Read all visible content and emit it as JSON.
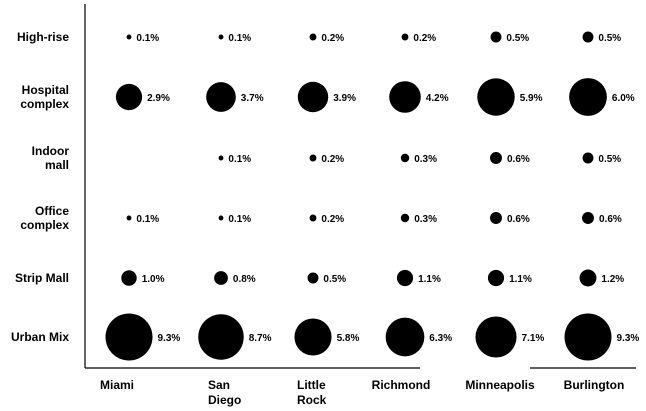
{
  "chart_data": {
    "type": "bubble-matrix",
    "rows": [
      "High-rise",
      "Hospital complex",
      "Indoor mall",
      "Office complex",
      "Strip Mall",
      "Urban Mix"
    ],
    "columns": [
      "Miami",
      "San Diego",
      "Little Rock",
      "Richmond",
      "Minneapolis",
      "Burlington"
    ],
    "values": [
      [
        0.1,
        0.1,
        0.2,
        0.2,
        0.5,
        0.5
      ],
      [
        2.9,
        3.7,
        3.9,
        4.2,
        5.9,
        6.0
      ],
      [
        null,
        0.1,
        0.2,
        0.3,
        0.6,
        0.5
      ],
      [
        0.1,
        0.1,
        0.2,
        0.3,
        0.6,
        0.6
      ],
      [
        1.0,
        0.8,
        0.5,
        1.1,
        1.1,
        1.2
      ],
      [
        9.3,
        8.7,
        5.8,
        6.3,
        7.1,
        9.3
      ]
    ],
    "value_labels": [
      [
        "0.1%",
        "0.1%",
        "0.2%",
        "0.2%",
        "0.5%",
        "0.5%"
      ],
      [
        "2.9%",
        "3.7%",
        "3.9%",
        "4.2%",
        "5.9%",
        "6.0%"
      ],
      [
        "",
        "0.1%",
        "0.2%",
        "0.3%",
        "0.6%",
        "0.5%"
      ],
      [
        "0.1%",
        "0.1%",
        "0.2%",
        "0.3%",
        "0.6%",
        "0.6%"
      ],
      [
        "1.0%",
        "0.8%",
        "0.5%",
        "1.1%",
        "1.1%",
        "1.2%"
      ],
      [
        "9.3%",
        "8.7%",
        "5.8%",
        "6.3%",
        "7.1%",
        "9.3%"
      ]
    ],
    "unit": "%",
    "bubble_color": "#000000",
    "grid": false
  }
}
